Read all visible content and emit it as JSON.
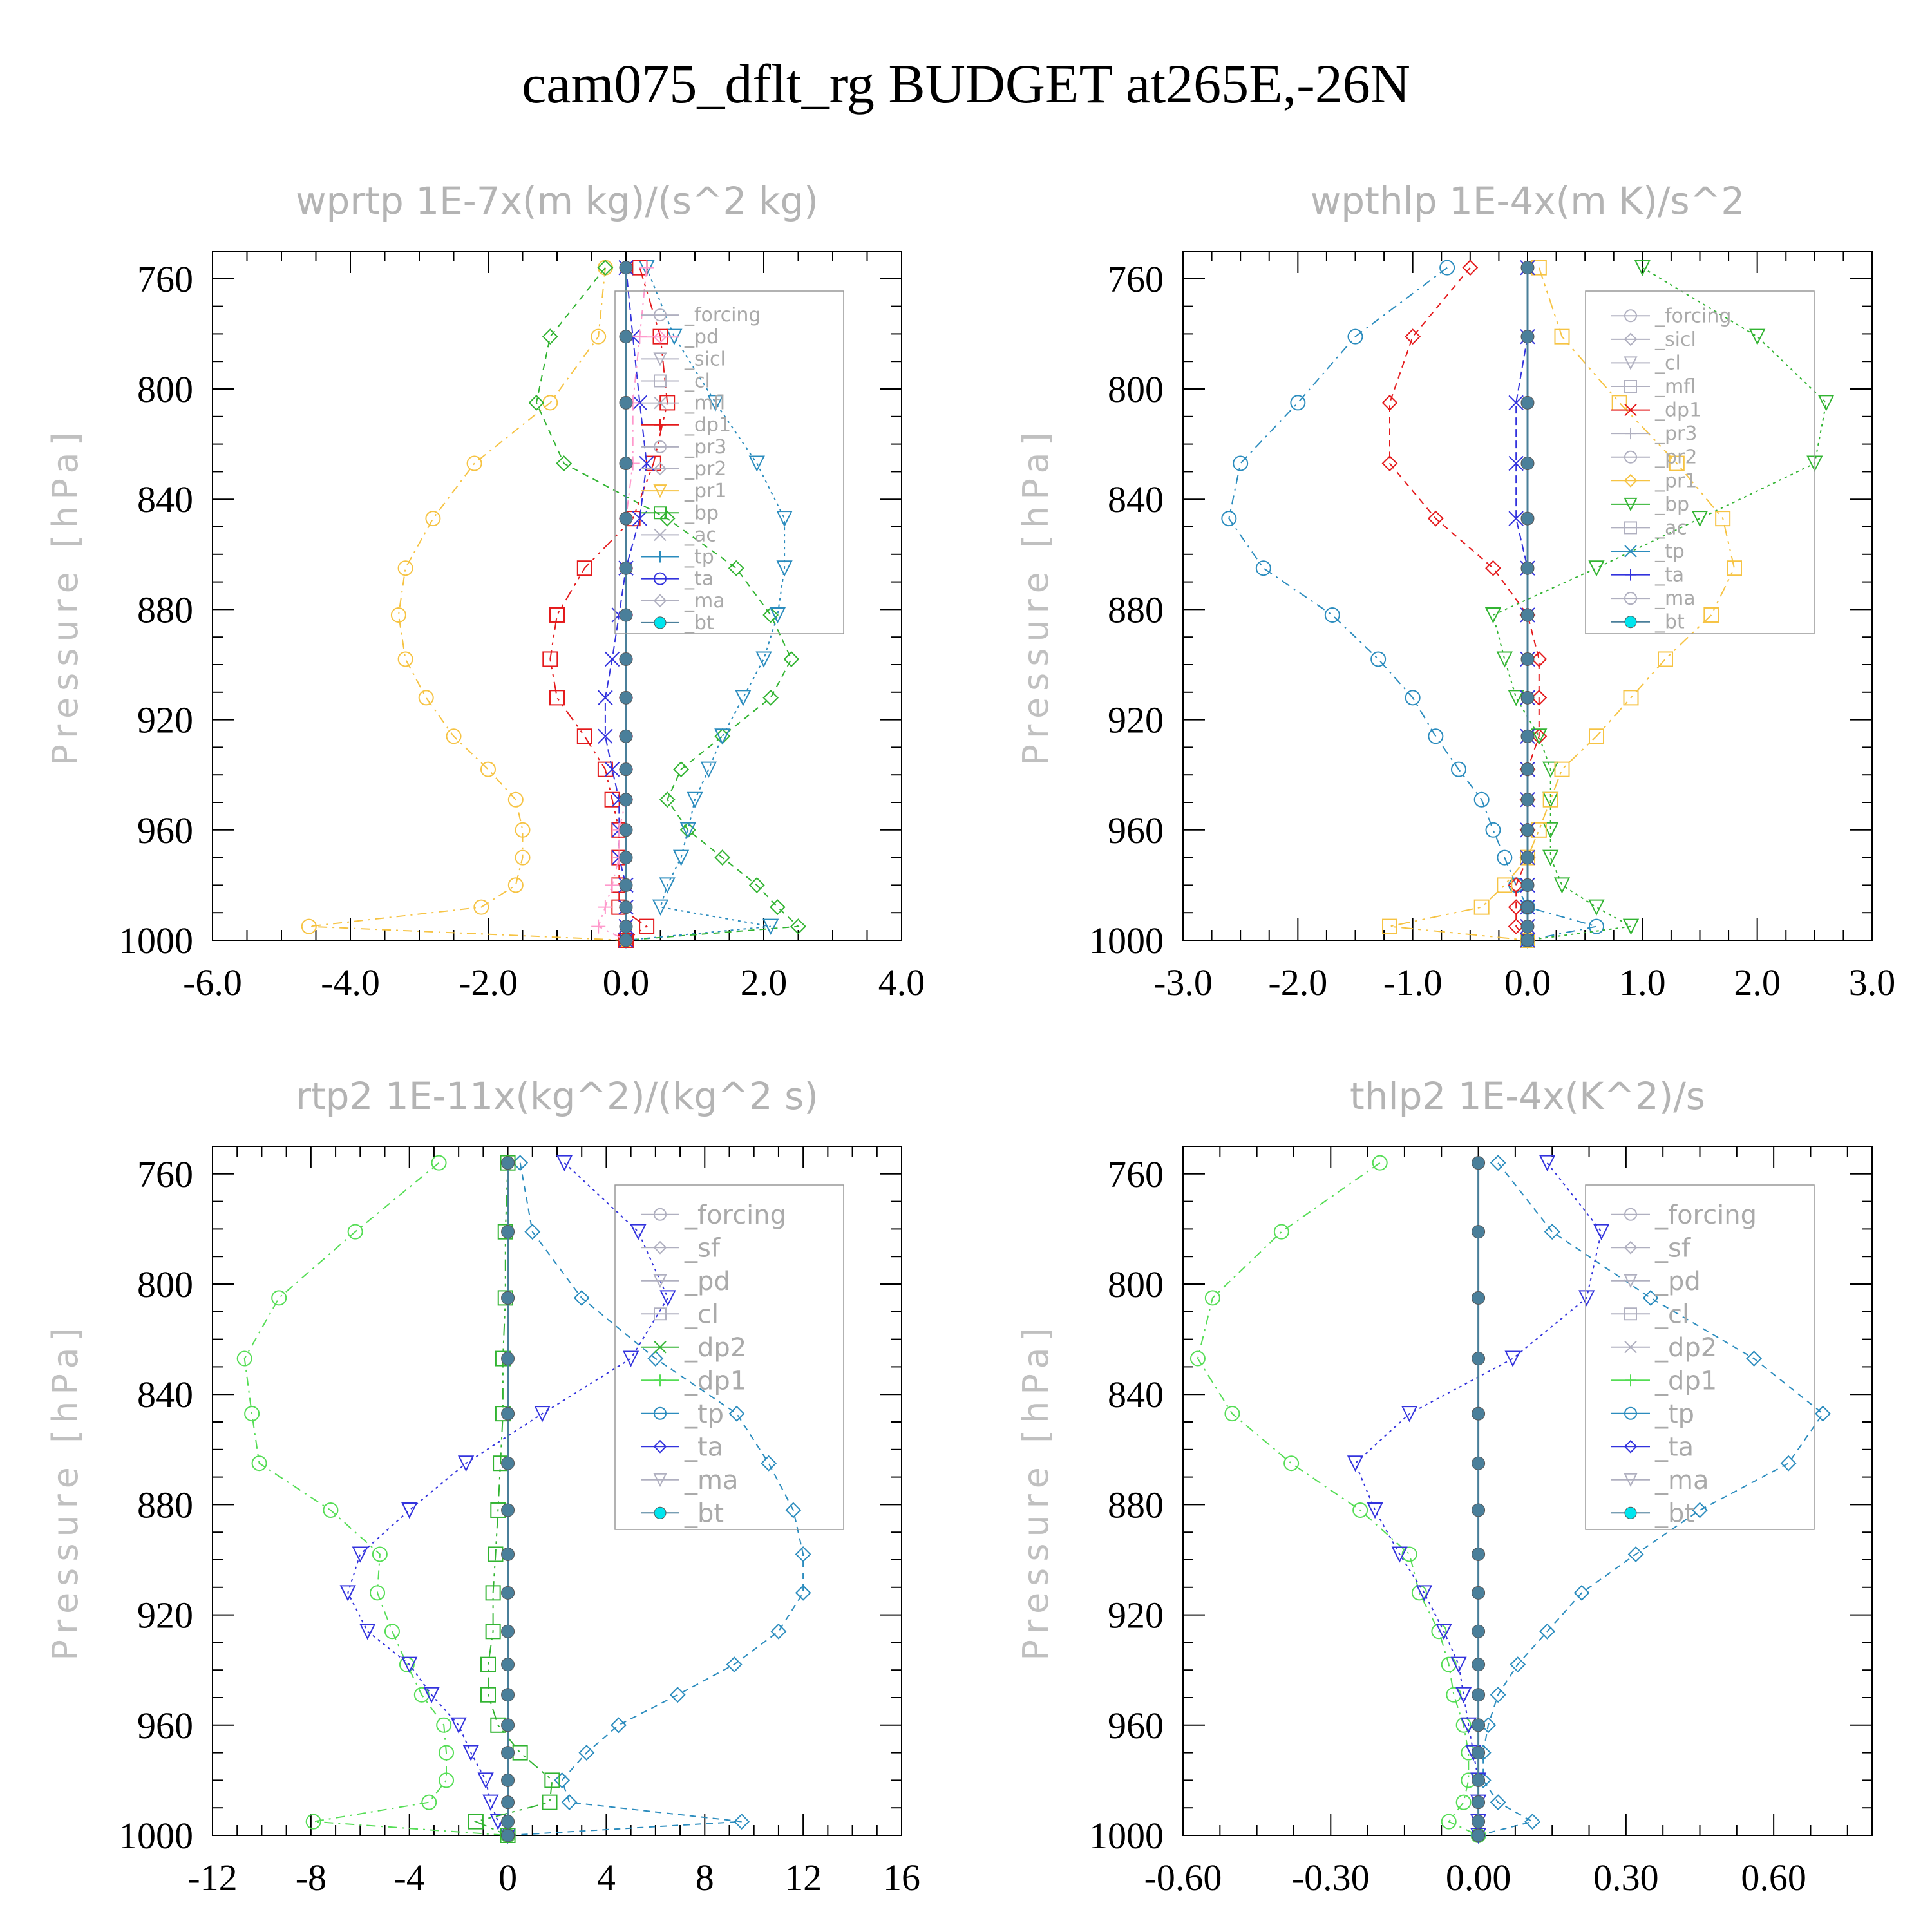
{
  "title": "cam075_dflt_rg  BUDGET at265E,-26N",
  "chart_data": [
    {
      "type": "line",
      "title": "wprtp   1E-7x(m kg)/(s^2 kg)",
      "ylabel": "Pressure  [hPa]",
      "xlim": [
        -6.0,
        4.0
      ],
      "ylim": [
        1000,
        750
      ],
      "xticks": [
        "-6.0",
        "-4.0",
        "-2.0",
        "0.0",
        "2.0",
        "4.0"
      ],
      "yticks": [
        "760",
        "800",
        "840",
        "880",
        "920",
        "960",
        "1000"
      ],
      "legend": [
        "_forcing",
        "_pd",
        "_sicl",
        "_cl",
        "_mfl",
        "_dp1",
        "_pr3",
        "_pr2",
        "_pr1",
        "_bp",
        "_ac",
        "_tp",
        "_ta",
        "_ma",
        "_bt"
      ],
      "levels": [
        756,
        781,
        805,
        827,
        847,
        865,
        882,
        898,
        912,
        926,
        938,
        949,
        960,
        970,
        980,
        988,
        995,
        1000
      ],
      "series": [
        {
          "name": "_pr1",
          "color": "#f6c343",
          "values": [
            -0.3,
            -0.4,
            -1.1,
            -2.2,
            -2.8,
            -3.2,
            -3.3,
            -3.2,
            -2.9,
            -2.5,
            -2.0,
            -1.6,
            -1.5,
            -1.5,
            -1.6,
            -2.1,
            -4.6,
            0.0
          ]
        },
        {
          "name": "_bp",
          "color": "#32b432",
          "values": [
            -0.3,
            -1.1,
            -1.3,
            -0.9,
            0.6,
            1.6,
            2.1,
            2.4,
            2.1,
            1.4,
            0.8,
            0.6,
            0.9,
            1.4,
            1.9,
            2.2,
            2.5,
            0.0
          ]
        },
        {
          "name": "_tp",
          "color": "#2b8cbe",
          "values": [
            0.3,
            0.7,
            1.3,
            1.9,
            2.3,
            2.3,
            2.2,
            2.0,
            1.7,
            1.4,
            1.2,
            1.0,
            0.9,
            0.8,
            0.6,
            0.5,
            2.1,
            0.0
          ]
        },
        {
          "name": "_dp1",
          "color": "#e41a1c",
          "values": [
            0.2,
            0.5,
            0.6,
            0.4,
            0.1,
            -0.6,
            -1.0,
            -1.1,
            -1.0,
            -0.6,
            -0.3,
            -0.2,
            -0.1,
            -0.1,
            -0.1,
            -0.1,
            0.3,
            0.0
          ]
        },
        {
          "name": "_ta",
          "color": "#3333dd",
          "values": [
            0.0,
            0.1,
            0.2,
            0.3,
            0.2,
            0.0,
            -0.1,
            -0.2,
            -0.3,
            -0.3,
            -0.2,
            -0.1,
            -0.1,
            -0.1,
            0.0,
            0.0,
            0.0,
            0.0
          ]
        },
        {
          "name": "_pd",
          "color": "#ff99cc",
          "values": [
            0.3,
            0.2,
            0.1,
            0.1,
            0.0,
            0.0,
            0.0,
            0.0,
            0.0,
            0.0,
            0.0,
            0.0,
            -0.1,
            -0.1,
            -0.2,
            -0.3,
            -0.4,
            0.0
          ]
        },
        {
          "name": "_bt",
          "color": "#4a7f9a",
          "values": [
            0,
            0,
            0,
            0,
            0,
            0,
            0,
            0,
            0,
            0,
            0,
            0,
            0,
            0,
            0,
            0,
            0,
            0
          ]
        }
      ]
    },
    {
      "type": "line",
      "title": "wpthlp   1E-4x(m K)/s^2",
      "ylabel": "Pressure  [hPa]",
      "xlim": [
        -3.0,
        3.0
      ],
      "ylim": [
        1000,
        750
      ],
      "xticks": [
        "-3.0",
        "-2.0",
        "-1.0",
        "0.0",
        "1.0",
        "2.0",
        "3.0"
      ],
      "yticks": [
        "760",
        "800",
        "840",
        "880",
        "920",
        "960",
        "1000"
      ],
      "legend": [
        "_forcing",
        "_sicl",
        "_cl",
        "_mfl",
        "_dp1",
        "_pr3",
        "_pr2",
        "_pr1",
        "_bp",
        "_ac",
        "_tp",
        "_ta",
        "_ma",
        "_bt"
      ],
      "levels": [
        756,
        781,
        805,
        827,
        847,
        865,
        882,
        898,
        912,
        926,
        938,
        949,
        960,
        970,
        980,
        988,
        995,
        1000
      ],
      "series": [
        {
          "name": "_tp",
          "color": "#2b8cbe",
          "values": [
            -0.7,
            -1.5,
            -2.0,
            -2.5,
            -2.6,
            -2.3,
            -1.7,
            -1.3,
            -1.0,
            -0.8,
            -0.6,
            -0.4,
            -0.3,
            -0.2,
            -0.1,
            0.0,
            0.6,
            0.0
          ]
        },
        {
          "name": "_dp1",
          "color": "#e41a1c",
          "values": [
            -0.5,
            -1.0,
            -1.2,
            -1.2,
            -0.8,
            -0.3,
            0.0,
            0.1,
            0.1,
            0.1,
            0.0,
            0.0,
            0.0,
            0.0,
            -0.1,
            -0.1,
            -0.1,
            0.0
          ]
        },
        {
          "name": "_bp",
          "color": "#32b432",
          "values": [
            1.0,
            2.0,
            2.6,
            2.5,
            1.5,
            0.6,
            -0.3,
            -0.2,
            -0.1,
            0.1,
            0.2,
            0.2,
            0.2,
            0.2,
            0.3,
            0.6,
            0.9,
            0.0
          ]
        },
        {
          "name": "_pr1",
          "color": "#f6c343",
          "values": [
            0.1,
            0.3,
            0.8,
            1.3,
            1.7,
            1.8,
            1.6,
            1.2,
            0.9,
            0.6,
            0.3,
            0.2,
            0.1,
            0.0,
            -0.2,
            -0.4,
            -1.2,
            0.0
          ]
        },
        {
          "name": "_ta",
          "color": "#3333dd",
          "values": [
            0.0,
            0.0,
            -0.1,
            -0.1,
            -0.1,
            0.0,
            0.0,
            0.0,
            0.0,
            0.0,
            0.0,
            0.0,
            0.0,
            0.0,
            0.0,
            0.0,
            0.0,
            0.0
          ]
        },
        {
          "name": "_bt",
          "color": "#4a7f9a",
          "values": [
            0,
            0,
            0,
            0,
            0,
            0,
            0,
            0,
            0,
            0,
            0,
            0,
            0,
            0,
            0,
            0,
            0,
            0
          ]
        }
      ]
    },
    {
      "type": "line",
      "title": "rtp2   1E-11x(kg^2)/(kg^2 s)",
      "ylabel": "Pressure  [hPa]",
      "xlim": [
        -12,
        16
      ],
      "ylim": [
        1000,
        750
      ],
      "xticks": [
        "-12",
        "-8",
        "-4",
        "0",
        "4",
        "8",
        "12",
        "16"
      ],
      "yticks": [
        "760",
        "800",
        "840",
        "880",
        "920",
        "960",
        "1000"
      ],
      "legend": [
        "_forcing",
        "_sf",
        "_pd",
        "_cl",
        "_dp2",
        "_dp1",
        "_tp",
        "_ta",
        "_ma",
        "_bt"
      ],
      "levels": [
        756,
        781,
        805,
        827,
        847,
        865,
        882,
        898,
        912,
        926,
        938,
        949,
        960,
        970,
        980,
        988,
        995,
        1000
      ],
      "series": [
        {
          "name": "_dp1",
          "color": "#55dd55",
          "values": [
            -2.8,
            -6.2,
            -9.3,
            -10.7,
            -10.4,
            -10.1,
            -7.2,
            -5.2,
            -5.3,
            -4.7,
            -4.1,
            -3.5,
            -2.6,
            -2.5,
            -2.5,
            -3.2,
            -7.9,
            0.0
          ]
        },
        {
          "name": "_tp",
          "color": "#2b8cbe",
          "values": [
            0.5,
            1.0,
            3.0,
            6.0,
            9.3,
            10.6,
            11.6,
            12.0,
            12.0,
            11.0,
            9.2,
            6.9,
            4.5,
            3.2,
            2.2,
            2.5,
            9.5,
            0.0
          ]
        },
        {
          "name": "_ta",
          "color": "#3333dd",
          "values": [
            2.3,
            5.3,
            6.5,
            5.0,
            1.4,
            -1.7,
            -4.0,
            -6.0,
            -6.5,
            -5.7,
            -4.0,
            -3.1,
            -2.0,
            -1.5,
            -0.9,
            -0.7,
            -0.4,
            0.0
          ]
        },
        {
          "name": "_dp2",
          "color": "#32b432",
          "values": [
            0.0,
            -0.1,
            -0.1,
            -0.2,
            -0.2,
            -0.3,
            -0.4,
            -0.5,
            -0.6,
            -0.6,
            -0.8,
            -0.8,
            -0.4,
            0.5,
            1.8,
            1.7,
            -1.3,
            0.0
          ]
        },
        {
          "name": "_bt",
          "color": "#4a7f9a",
          "values": [
            0,
            0,
            0,
            0,
            0,
            0,
            0,
            0,
            0,
            0,
            0,
            0,
            0,
            0,
            0,
            0,
            0,
            0
          ]
        }
      ]
    },
    {
      "type": "line",
      "title": "thlp2   1E-4x(K^2)/s",
      "ylabel": "Pressure  [hPa]",
      "xlim": [
        -0.6,
        0.8
      ],
      "ylim": [
        1000,
        750
      ],
      "xticks": [
        "-0.60",
        "-0.30",
        "0.00",
        "0.30",
        "0.60"
      ],
      "yticks": [
        "760",
        "800",
        "840",
        "880",
        "920",
        "960",
        "1000"
      ],
      "legend": [
        "_forcing",
        "_sf",
        "_pd",
        "_cl",
        "_dp2",
        "_dp1",
        "_tp",
        "_ta",
        "_ma",
        "_bt"
      ],
      "levels": [
        756,
        781,
        805,
        827,
        847,
        865,
        882,
        898,
        912,
        926,
        938,
        949,
        960,
        970,
        980,
        988,
        995,
        1000
      ],
      "series": [
        {
          "name": "_dp1",
          "color": "#55dd55",
          "values": [
            -0.2,
            -0.4,
            -0.54,
            -0.57,
            -0.5,
            -0.38,
            -0.24,
            -0.14,
            -0.12,
            -0.08,
            -0.06,
            -0.05,
            -0.03,
            -0.02,
            -0.02,
            -0.03,
            -0.06,
            0.0
          ]
        },
        {
          "name": "_tp",
          "color": "#2b8cbe",
          "values": [
            0.04,
            0.15,
            0.35,
            0.56,
            0.7,
            0.63,
            0.45,
            0.32,
            0.21,
            0.14,
            0.08,
            0.04,
            0.02,
            0.01,
            0.01,
            0.04,
            0.11,
            0.0
          ]
        },
        {
          "name": "_ta",
          "color": "#3333dd",
          "values": [
            0.14,
            0.25,
            0.22,
            0.07,
            -0.14,
            -0.25,
            -0.21,
            -0.16,
            -0.11,
            -0.07,
            -0.04,
            -0.03,
            -0.02,
            -0.01,
            0.0,
            0.0,
            0.0,
            0.0
          ]
        },
        {
          "name": "_bt",
          "color": "#4a7f9a",
          "values": [
            0,
            0,
            0,
            0,
            0,
            0,
            0,
            0,
            0,
            0,
            0,
            0,
            0,
            0,
            0,
            0,
            0,
            0
          ]
        }
      ]
    }
  ]
}
